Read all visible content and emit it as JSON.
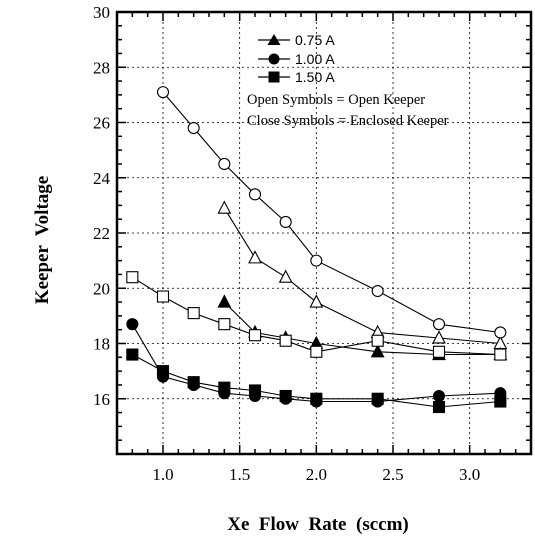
{
  "chart_data": {
    "type": "line",
    "title": "",
    "xlabel": "Xe  Flow  Rate  (sccm)",
    "ylabel": "Keeper  Voltage",
    "xlim": [
      0.7,
      3.4
    ],
    "ylim": [
      14,
      30
    ],
    "x_ticks": [
      "1.0",
      "1.5",
      "2.0",
      "2.5",
      "3.0"
    ],
    "x_tick_values": [
      1.0,
      1.5,
      2.0,
      2.5,
      3.0
    ],
    "y_ticks": [
      "16",
      "18",
      "20",
      "22",
      "24",
      "26",
      "28",
      "30"
    ],
    "y_tick_values": [
      16,
      18,
      20,
      22,
      24,
      26,
      28,
      30
    ],
    "grid": true,
    "legend_position": "top-right",
    "legend": [
      {
        "label": "0.75 A",
        "marker": "triangle"
      },
      {
        "label": "1.00 A",
        "marker": "circle"
      },
      {
        "label": "1.50 A",
        "marker": "square"
      }
    ],
    "notes": [
      "Open Symbols = Open Keeper",
      "Close Symbols = Enclosed Keeper"
    ],
    "series": [
      {
        "current": "0.75 A",
        "keeper": "open",
        "marker": "triangle",
        "filled": false,
        "x": [
          1.4,
          1.6,
          1.8,
          2.0,
          2.4,
          2.8,
          3.2
        ],
        "y": [
          22.9,
          21.1,
          20.4,
          19.5,
          18.4,
          18.2,
          18.0
        ]
      },
      {
        "current": "0.75 A",
        "keeper": "enclosed",
        "marker": "triangle",
        "filled": true,
        "x": [
          1.4,
          1.6,
          1.8,
          2.0,
          2.4,
          2.8,
          3.2
        ],
        "y": [
          19.5,
          18.4,
          18.2,
          18.0,
          17.7,
          17.6,
          17.6
        ]
      },
      {
        "current": "1.00 A",
        "keeper": "open",
        "marker": "circle",
        "filled": false,
        "x": [
          1.0,
          1.2,
          1.4,
          1.6,
          1.8,
          2.0,
          2.4,
          2.8,
          3.2
        ],
        "y": [
          27.1,
          25.8,
          24.5,
          23.4,
          22.4,
          21.0,
          19.9,
          18.7,
          18.4
        ]
      },
      {
        "current": "1.00 A",
        "keeper": "enclosed",
        "marker": "circle",
        "filled": true,
        "x": [
          0.8,
          1.0,
          1.2,
          1.4,
          1.6,
          1.8,
          2.0,
          2.4,
          2.8,
          3.2
        ],
        "y": [
          18.7,
          16.8,
          16.5,
          16.2,
          16.1,
          16.0,
          15.9,
          15.9,
          16.1,
          16.2
        ]
      },
      {
        "current": "1.50 A",
        "keeper": "open",
        "marker": "square",
        "filled": false,
        "x": [
          0.8,
          1.0,
          1.2,
          1.4,
          1.6,
          1.8,
          2.0,
          2.4,
          2.8,
          3.2
        ],
        "y": [
          20.4,
          19.7,
          19.1,
          18.7,
          18.3,
          18.1,
          17.7,
          18.1,
          17.7,
          17.6
        ]
      },
      {
        "current": "1.50 A",
        "keeper": "enclosed",
        "marker": "square",
        "filled": true,
        "x": [
          0.8,
          1.0,
          1.2,
          1.4,
          1.6,
          1.8,
          2.0,
          2.4,
          2.8,
          3.2
        ],
        "y": [
          17.6,
          17.0,
          16.6,
          16.4,
          16.3,
          16.1,
          16.0,
          16.0,
          15.7,
          15.9
        ]
      }
    ]
  }
}
